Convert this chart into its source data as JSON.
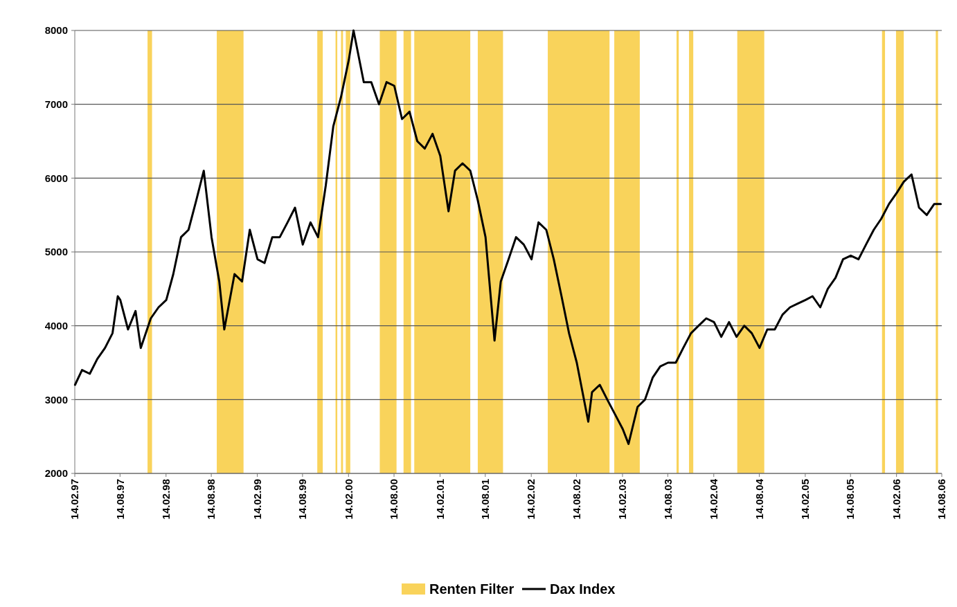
{
  "chart_data": {
    "type": "line",
    "x": [
      "1997-02-15",
      "1997-03-15",
      "1997-04-15",
      "1997-05-15",
      "1997-06-15",
      "1997-07-15",
      "1997-08-05",
      "1997-08-15",
      "1997-09-15",
      "1997-10-15",
      "1997-11-05",
      "1997-12-15",
      "1998-01-15",
      "1998-02-15",
      "1998-03-15",
      "1998-04-15",
      "1998-05-15",
      "1998-06-15",
      "1998-07-15",
      "1998-08-15",
      "1998-09-15",
      "1998-10-05",
      "1998-11-15",
      "1998-12-15",
      "1999-01-15",
      "1999-02-15",
      "1999-03-15",
      "1999-04-15",
      "1999-05-15",
      "1999-06-15",
      "1999-07-15",
      "1999-08-15",
      "1999-09-15",
      "1999-10-15",
      "1999-11-15",
      "1999-12-15",
      "2000-01-15",
      "2000-02-15",
      "2000-03-05",
      "2000-04-15",
      "2000-05-15",
      "2000-06-15",
      "2000-07-15",
      "2000-08-15",
      "2000-09-15",
      "2000-10-15",
      "2000-11-15",
      "2000-12-15",
      "2001-01-15",
      "2001-02-15",
      "2001-03-20",
      "2001-04-15",
      "2001-05-15",
      "2001-06-15",
      "2001-07-15",
      "2001-08-15",
      "2001-09-20",
      "2001-10-15",
      "2001-11-15",
      "2001-12-15",
      "2002-01-15",
      "2002-02-15",
      "2002-03-15",
      "2002-04-15",
      "2002-05-15",
      "2002-06-15",
      "2002-07-15",
      "2002-08-15",
      "2002-09-30",
      "2002-10-15",
      "2002-11-15",
      "2002-12-15",
      "2003-01-15",
      "2003-02-15",
      "2003-03-10",
      "2003-04-15",
      "2003-05-15",
      "2003-06-15",
      "2003-07-15",
      "2003-08-15",
      "2003-09-15",
      "2003-10-15",
      "2003-11-15",
      "2003-12-15",
      "2004-01-15",
      "2004-02-15",
      "2004-03-15",
      "2004-04-15",
      "2004-05-15",
      "2004-06-15",
      "2004-07-15",
      "2004-08-15",
      "2004-09-15",
      "2004-10-15",
      "2004-11-15",
      "2004-12-15",
      "2005-01-15",
      "2005-02-15",
      "2005-03-15",
      "2005-04-15",
      "2005-05-15",
      "2005-06-15",
      "2005-07-15",
      "2005-08-15",
      "2005-09-15",
      "2005-10-15",
      "2005-11-15",
      "2005-12-15",
      "2006-01-15",
      "2006-02-15",
      "2006-03-15",
      "2006-04-15",
      "2006-05-15",
      "2006-06-15",
      "2006-07-15",
      "2006-08-10"
    ],
    "series": [
      {
        "name": "Dax Index",
        "color": "#000000",
        "values": [
          3200,
          3400,
          3350,
          3550,
          3700,
          3900,
          4400,
          4350,
          3950,
          4200,
          3700,
          4100,
          4250,
          4350,
          4700,
          5200,
          5300,
          5700,
          6100,
          5200,
          4600,
          3950,
          4700,
          4600,
          5300,
          4900,
          4850,
          5200,
          5200,
          5400,
          5600,
          5100,
          5400,
          5200,
          5900,
          6700,
          7100,
          7600,
          8000,
          7300,
          7300,
          7000,
          7300,
          7250,
          6800,
          6900,
          6500,
          6400,
          6600,
          6300,
          5550,
          6100,
          6200,
          6100,
          5700,
          5200,
          3800,
          4600,
          4900,
          5200,
          5100,
          4900,
          5400,
          5300,
          4900,
          4400,
          3900,
          3500,
          2700,
          3100,
          3200,
          3000,
          2800,
          2600,
          2400,
          2900,
          3000,
          3300,
          3450,
          3500,
          3500,
          3700,
          3900,
          4000,
          4100,
          4050,
          3850,
          4050,
          3850,
          4000,
          3900,
          3700,
          3950,
          3950,
          4150,
          4250,
          4300,
          4350,
          4400,
          4250,
          4500,
          4650,
          4900,
          4950,
          4900,
          5100,
          5300,
          5450,
          5650,
          5800,
          5950,
          6050,
          5600,
          5500,
          5650,
          5650
        ]
      }
    ],
    "bands": [
      {
        "axis": "x",
        "from": "1997-12-02",
        "to": "1997-12-20",
        "label": "Renten Filter",
        "color": "#f9d35b"
      },
      {
        "axis": "x",
        "from": "1998-09-05",
        "to": "1998-12-21",
        "color": "#f9d35b"
      },
      {
        "axis": "x",
        "from": "1999-10-12",
        "to": "1999-11-03",
        "color": "#f9d35b"
      },
      {
        "axis": "x",
        "from": "1999-12-24",
        "to": "1999-12-31",
        "color": "#f9d35b"
      },
      {
        "axis": "x",
        "from": "2000-01-15",
        "to": "2000-01-23",
        "color": "#f9d35b"
      },
      {
        "axis": "x",
        "from": "2000-02-03",
        "to": "2000-02-21",
        "color": "#f9d35b"
      },
      {
        "axis": "x",
        "from": "2000-06-18",
        "to": "2000-08-24",
        "color": "#f9d35b"
      },
      {
        "axis": "x",
        "from": "2000-09-21",
        "to": "2000-10-21",
        "color": "#f9d35b"
      },
      {
        "axis": "x",
        "from": "2000-11-03",
        "to": "2001-06-15",
        "color": "#f9d35b"
      },
      {
        "axis": "x",
        "from": "2001-07-15",
        "to": "2001-10-24",
        "color": "#f9d35b"
      },
      {
        "axis": "x",
        "from": "2002-04-21",
        "to": "2002-12-24",
        "color": "#f9d35b"
      },
      {
        "axis": "x",
        "from": "2003-01-12",
        "to": "2003-04-24",
        "color": "#f9d35b"
      },
      {
        "axis": "x",
        "from": "2003-09-18",
        "to": "2003-09-27",
        "color": "#f9d35b"
      },
      {
        "axis": "x",
        "from": "2003-11-07",
        "to": "2003-11-24",
        "color": "#f9d35b"
      },
      {
        "axis": "x",
        "from": "2004-05-18",
        "to": "2004-09-03",
        "color": "#f9d35b"
      },
      {
        "axis": "x",
        "from": "2005-12-18",
        "to": "2005-12-30",
        "color": "#f9d35b"
      },
      {
        "axis": "x",
        "from": "2006-02-12",
        "to": "2006-03-15",
        "color": "#f9d35b"
      },
      {
        "axis": "x",
        "from": "2006-07-21",
        "to": "2006-07-30",
        "color": "#f9d35b"
      }
    ],
    "xlim": [
      "1997-02-14",
      "2006-08-14"
    ],
    "xticks": [
      {
        "value": "1997-02-14",
        "label": "14.02.97"
      },
      {
        "value": "1997-08-14",
        "label": "14.08.97"
      },
      {
        "value": "1998-02-14",
        "label": "14.02.98"
      },
      {
        "value": "1998-08-14",
        "label": "14.08.98"
      },
      {
        "value": "1999-02-14",
        "label": "14.02.99"
      },
      {
        "value": "1999-08-14",
        "label": "14.08.99"
      },
      {
        "value": "2000-02-14",
        "label": "14.02.00"
      },
      {
        "value": "2000-08-14",
        "label": "14.08.00"
      },
      {
        "value": "2001-02-14",
        "label": "14.02.01"
      },
      {
        "value": "2001-08-14",
        "label": "14.08.01"
      },
      {
        "value": "2002-02-14",
        "label": "14.02.02"
      },
      {
        "value": "2002-08-14",
        "label": "14.08.02"
      },
      {
        "value": "2003-02-14",
        "label": "14.02.03"
      },
      {
        "value": "2003-08-14",
        "label": "14.08.03"
      },
      {
        "value": "2004-02-14",
        "label": "14.02.04"
      },
      {
        "value": "2004-08-14",
        "label": "14.08.04"
      },
      {
        "value": "2005-02-14",
        "label": "14.02.05"
      },
      {
        "value": "2005-08-14",
        "label": "14.08.05"
      },
      {
        "value": "2006-02-14",
        "label": "14.02.06"
      },
      {
        "value": "2006-08-14",
        "label": "14.08.06"
      }
    ],
    "ylim": [
      2000,
      8000
    ],
    "yticks": [
      2000,
      3000,
      4000,
      5000,
      6000,
      7000,
      8000
    ],
    "grid": "y",
    "legend": "bottom"
  }
}
